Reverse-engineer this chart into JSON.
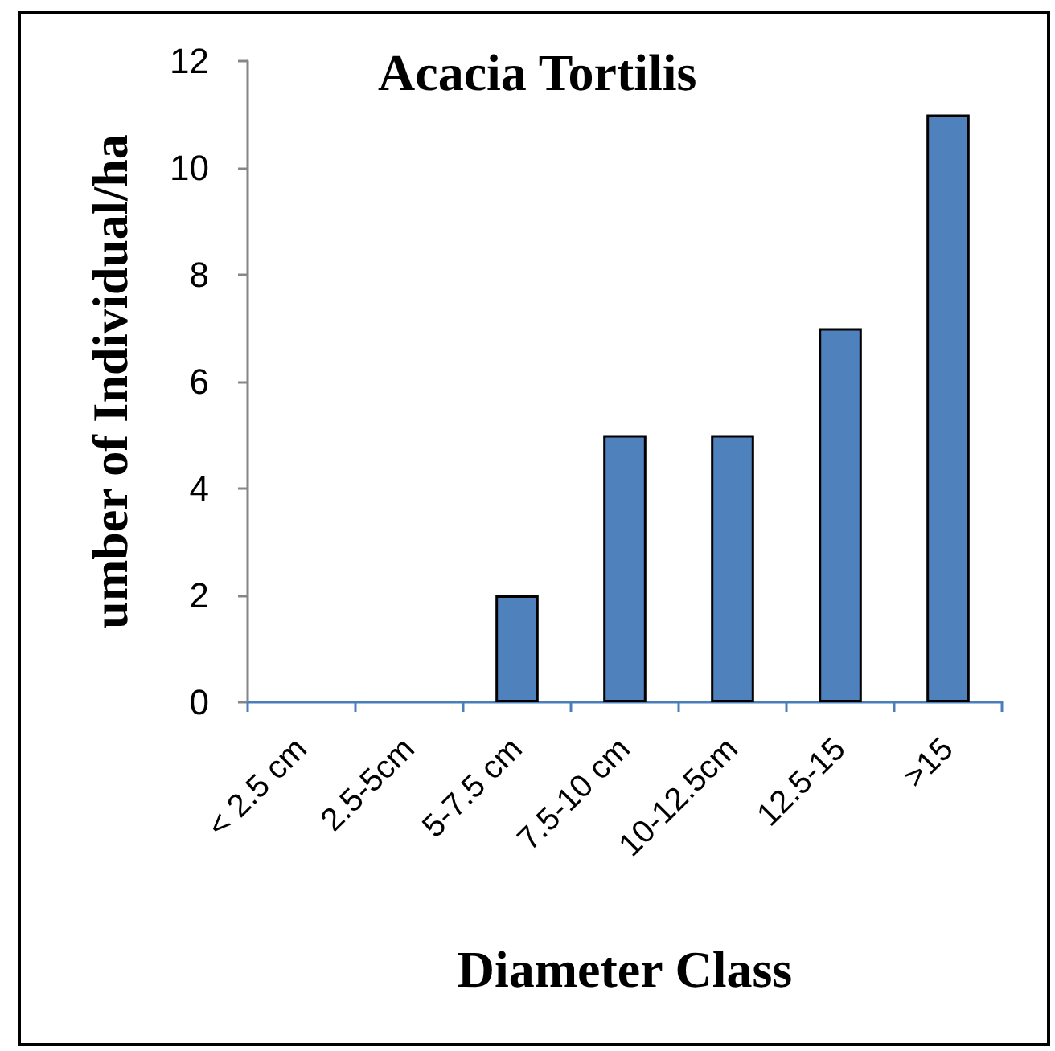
{
  "chart_data": {
    "type": "bar",
    "title": "Acacia Tortilis",
    "xlabel": "Diameter Class",
    "ylabel": "umber of Individual/ha",
    "categories": [
      "< 2.5 cm",
      "2.5-5cm",
      "5-7.5 cm",
      "7.5-10 cm",
      "10-12.5cm",
      "12.5-15",
      ">15"
    ],
    "values": [
      0,
      0,
      2,
      5,
      5,
      7,
      11
    ],
    "color": "#4f81bd",
    "ylim": [
      0,
      12
    ],
    "yticks": [
      0,
      2,
      4,
      6,
      8,
      10,
      12
    ]
  }
}
